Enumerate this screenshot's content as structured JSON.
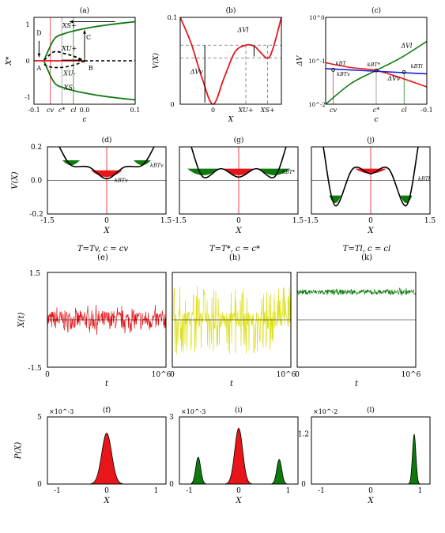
{
  "colors": {
    "red": "#e8161b",
    "green": "#0e7a0d",
    "blue": "#1b1bd6",
    "yellow": "#dde01c",
    "gray": "#808080"
  },
  "captions": [
    {
      "line1": "T=Tv, c = cv",
      "line2": "(e)"
    },
    {
      "line1": "T=T*, c = c*",
      "line2": "(h)"
    },
    {
      "line1": "T=Tl, c = cl",
      "line2": "(k)"
    }
  ],
  "chart_data": [
    {
      "panel": "(a)",
      "type": "line",
      "xlabel": "c",
      "ylabel": "X*",
      "xlim": [
        -0.1,
        0.1
      ],
      "ylim": [
        -1.2,
        1.2
      ],
      "xticks": [
        "-0.1",
        "0.0",
        "0.1"
      ],
      "yticks": [
        "-1",
        "0",
        "1"
      ],
      "marked_x": [
        "cv",
        "c*",
        "cl"
      ],
      "labels": [
        "XS+",
        "XU+",
        "XU-",
        "XS-"
      ],
      "points": [
        "A",
        "B",
        "C",
        "D"
      ],
      "series": [
        {
          "style": "stable-upper",
          "x": [
            -0.08,
            -0.06,
            -0.04,
            -0.02,
            0.0,
            0.02,
            0.05,
            0.08,
            0.1
          ],
          "y": [
            0.02,
            0.6,
            0.75,
            0.83,
            0.89,
            0.94,
            1.0,
            1.05,
            1.08
          ]
        },
        {
          "style": "unstable",
          "x": [
            -0.08,
            -0.06,
            -0.04,
            -0.02,
            0.0
          ],
          "y": [
            0.02,
            0.25,
            0.2,
            0.12,
            0.0
          ]
        },
        {
          "style": "stable-lower",
          "x": [
            -0.08,
            -0.06,
            -0.04,
            -0.02,
            0.0,
            0.02,
            0.05,
            0.08,
            0.1
          ],
          "y": [
            -0.02,
            -0.6,
            -0.75,
            -0.83,
            -0.89,
            -0.94,
            -1.0,
            -1.05,
            -1.08
          ]
        },
        {
          "style": "stable-zero",
          "x": [
            -0.1,
            0.0
          ],
          "y": [
            0,
            0
          ]
        }
      ]
    },
    {
      "panel": "(b)",
      "type": "line",
      "xlabel": "X",
      "ylabel": "V(X)",
      "xlim": [
        -0.6,
        1.25
      ],
      "ylim": [
        0,
        0.1
      ],
      "xticks": [
        "0",
        "XU+",
        "XS+"
      ],
      "yticks": [
        "0",
        "0.1"
      ],
      "annotations": [
        "ΔVl",
        "ΔVv"
      ],
      "series": [
        {
          "x": [
            -0.6,
            -0.4,
            -0.2,
            0.0,
            0.2,
            0.4,
            0.6,
            0.75,
            0.85,
            1.0,
            1.1,
            1.25
          ],
          "y": [
            0.1,
            0.07,
            0.03,
            0.0,
            0.03,
            0.06,
            0.068,
            0.067,
            0.061,
            0.053,
            0.065,
            0.1
          ]
        }
      ]
    },
    {
      "panel": "(c)",
      "type": "line",
      "xlabel": "c",
      "ylabel": "ΔV",
      "yscale": "log",
      "xlim": [
        0.1,
        -0.1
      ],
      "ylim": [
        0.01,
        1
      ],
      "yticks": [
        "10^0",
        "10^-1",
        "10^-2"
      ],
      "xticks": [
        "cv",
        "c*",
        "cl",
        "-0.1"
      ],
      "labels": [
        "ΔVl",
        "ΔVv",
        "kBT",
        "kBT*",
        "kBTv",
        "kBTl"
      ],
      "series": [
        {
          "name": "ΔVl",
          "x": [
            0.1,
            0.05,
            0.0,
            -0.05,
            -0.1
          ],
          "y": [
            0.01,
            0.03,
            0.06,
            0.12,
            0.28
          ]
        },
        {
          "name": "ΔVv",
          "x": [
            0.1,
            0.05,
            0.0,
            -0.05,
            -0.1
          ],
          "y": [
            0.09,
            0.07,
            0.06,
            0.04,
            0.025
          ]
        },
        {
          "name": "kBT",
          "x": [
            0.1,
            -0.1
          ],
          "y": [
            0.066,
            0.05
          ]
        }
      ]
    },
    {
      "panel": "(d)",
      "type": "line",
      "ylabel": "V(X)",
      "xlabel": "X",
      "xlim": [
        -1.5,
        1.5
      ],
      "ylim": [
        -0.2,
        0.2
      ],
      "xticks": [
        "-1.5",
        "0",
        "1.5"
      ],
      "yticks": [
        "0.2",
        "0.0",
        "-0.2"
      ],
      "labels": [
        "kBTv",
        "kBTv"
      ],
      "series": [
        {
          "x": [
            -1.2,
            -0.9,
            -0.45,
            0.0,
            0.45,
            0.9,
            1.2
          ],
          "y": [
            0.2,
            0.09,
            0.08,
            0.01,
            0.08,
            0.09,
            0.2
          ]
        }
      ]
    },
    {
      "panel": "(g)",
      "type": "line",
      "xlabel": "X",
      "xlim": [
        -1.5,
        1.5
      ],
      "ylim": [
        -0.2,
        0.2
      ],
      "xticks": [
        "-1.5",
        "0",
        "1.5"
      ],
      "labels": [
        "kBT*"
      ],
      "series": [
        {
          "x": [
            -1.2,
            -0.9,
            -0.45,
            0.0,
            0.45,
            0.9,
            1.2
          ],
          "y": [
            0.2,
            0.02,
            0.07,
            0.02,
            0.07,
            0.02,
            0.2
          ]
        }
      ]
    },
    {
      "panel": "(j)",
      "type": "line",
      "xlabel": "X",
      "xlim": [
        -1.5,
        1.5
      ],
      "ylim": [
        -0.2,
        0.2
      ],
      "xticks": [
        "-1.5",
        "0",
        "1.5"
      ],
      "labels": [
        "kBTl"
      ],
      "series": [
        {
          "x": [
            -1.2,
            -0.9,
            -0.45,
            0.0,
            0.45,
            0.9,
            1.2
          ],
          "y": [
            0.2,
            -0.15,
            0.07,
            0.04,
            0.07,
            -0.15,
            0.2
          ]
        }
      ]
    },
    {
      "panel": "",
      "type": "line",
      "ylabel": "X(t)",
      "xlabel": "t",
      "xlim": [
        0,
        1000000
      ],
      "ylim": [
        -1.5,
        1.5
      ],
      "xticks": [
        "0",
        "10^6"
      ],
      "yticks": [
        "1.5",
        "-1.5"
      ],
      "series": [
        {
          "mean": 0.0,
          "spread": 0.3
        }
      ]
    },
    {
      "panel": "",
      "type": "line",
      "xlabel": "t",
      "xlim": [
        0,
        1000000
      ],
      "ylim": [
        -1.5,
        1.5
      ],
      "xticks": [
        "0",
        "10^6"
      ],
      "series": [
        {
          "mean": 0.0,
          "spread": 0.85
        }
      ]
    },
    {
      "panel": "",
      "type": "line",
      "xlabel": "t",
      "xlim": [
        0,
        1000000
      ],
      "ylim": [
        -1.5,
        1.5
      ],
      "xticks": [
        "0",
        "10^6"
      ],
      "series": [
        {
          "mean": 0.88,
          "spread": 0.08
        }
      ]
    },
    {
      "panel": "(f)",
      "type": "area",
      "ylabel": "P(X)",
      "xlabel": "X",
      "xlim": [
        -1.2,
        1.2
      ],
      "ylim": [
        0,
        5
      ],
      "ymultiplier": "×10^-3",
      "yticks": [
        "5",
        "0"
      ],
      "xticks": [
        "-1",
        "0",
        "1"
      ],
      "peaks": [
        {
          "center": 0.0,
          "height": 3.8,
          "width": 0.1,
          "color": "red"
        }
      ]
    },
    {
      "panel": "(i)",
      "type": "area",
      "xlabel": "X",
      "xlim": [
        -1.2,
        1.2
      ],
      "ylim": [
        0,
        3
      ],
      "ymultiplier": "×10^-3",
      "yticks": [
        "3",
        "0"
      ],
      "xticks": [
        "-1",
        "0",
        "1"
      ],
      "peaks": [
        {
          "center": -0.82,
          "height": 1.2,
          "width": 0.05,
          "color": "green"
        },
        {
          "center": 0.0,
          "height": 2.5,
          "width": 0.08,
          "color": "red"
        },
        {
          "center": 0.82,
          "height": 1.1,
          "width": 0.05,
          "color": "green"
        }
      ]
    },
    {
      "panel": "(l)",
      "type": "area",
      "xlabel": "X",
      "xlim": [
        -1.2,
        1.2
      ],
      "ylim": [
        0,
        1.6
      ],
      "ymultiplier": "×10^-2",
      "yticks": [
        "1.2",
        "0"
      ],
      "xticks": [
        "-1",
        "0",
        "1"
      ],
      "peaks": [
        {
          "center": 0.88,
          "height": 1.18,
          "width": 0.035,
          "color": "green"
        }
      ]
    }
  ]
}
